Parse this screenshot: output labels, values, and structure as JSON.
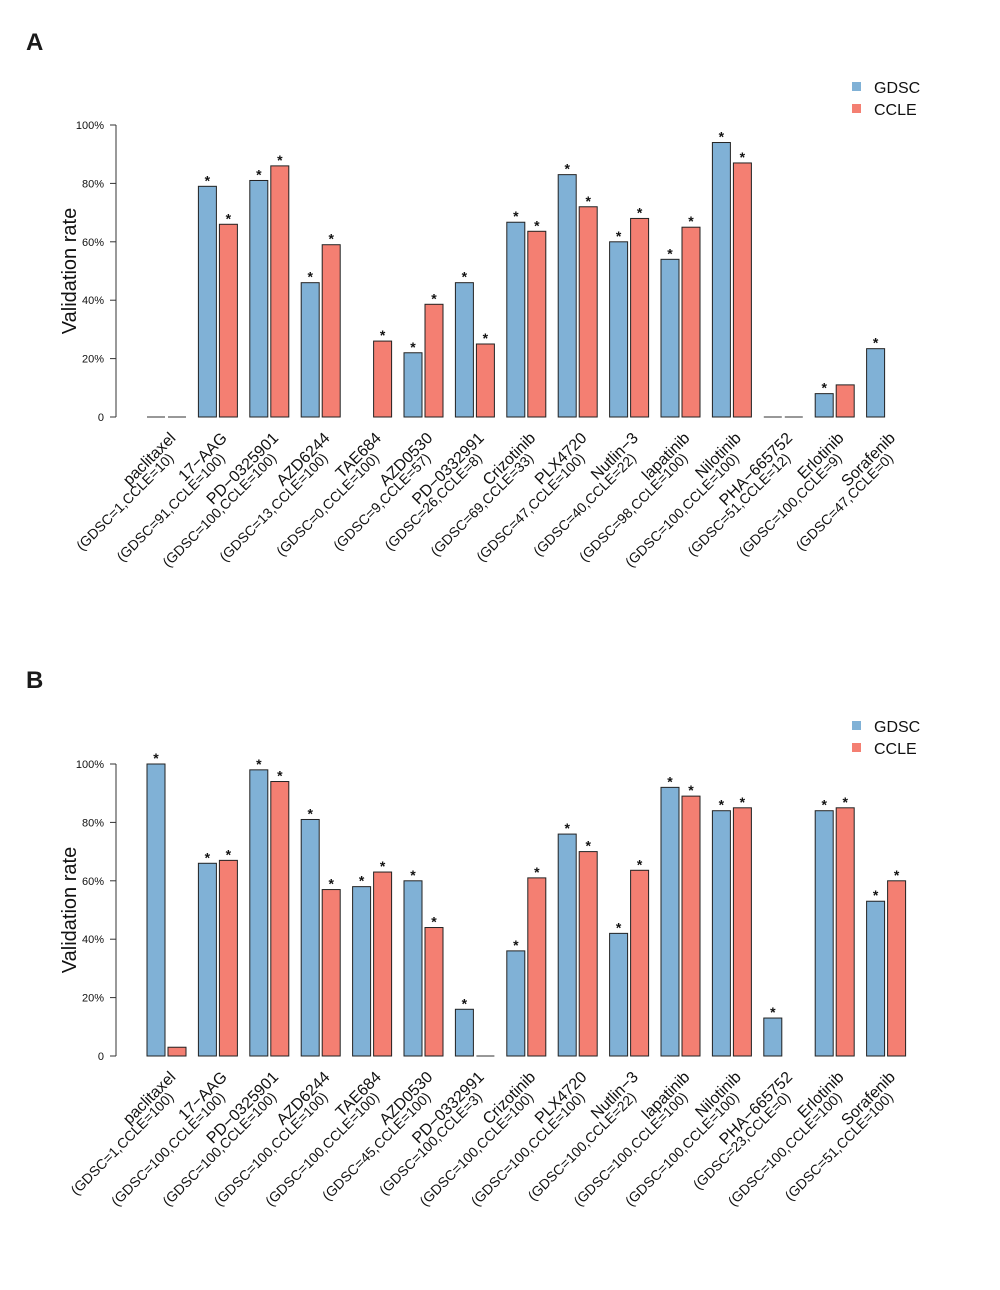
{
  "chart_data": [
    {
      "panel": "A",
      "type": "bar",
      "title": "",
      "xlabel": "",
      "ylabel": "Validation rate",
      "ylim": [
        0,
        100
      ],
      "yticks": [
        "0",
        "20%",
        "40%",
        "60%",
        "80%",
        "100%"
      ],
      "legend": {
        "position": "top-right",
        "entries": [
          "GDSC",
          "CCLE"
        ]
      },
      "colors": {
        "GDSC": "#80b1d6",
        "CCLE": "#f47f72"
      },
      "categories": [
        "paclitaxel",
        "17−AAG",
        "PD−0325901",
        "AZD6244",
        "TAE684",
        "AZD0530",
        "PD−0332991",
        "Crizotinib",
        "PLX4720",
        "Nutlin−3",
        "lapatinib",
        "Nilotinib",
        "PHA−665752",
        "Erlotinib",
        "Sorafenib"
      ],
      "sublabels": [
        "(GDSC=1,CCLE=10)",
        "(GDSC=91,CCLE=100)",
        "(GDSC=100,CCLE=100)",
        "(GDSC=13,CCLE=100)",
        "(GDSC=0,CCLE=100)",
        "(GDSC=9,CCLE=57)",
        "(GDSC=26,CCLE=8)",
        "(GDSC=69,CCLE=33)",
        "(GDSC=47,CCLE=100)",
        "(GDSC=40,CCLE=22)",
        "(GDSC=98,CCLE=100)",
        "(GDSC=100,CCLE=100)",
        "(GDSC=51,CCLE=12)",
        "(GDSC=100,CCLE=9)",
        "(GDSC=47,CCLE=0)"
      ],
      "series": [
        {
          "name": "GDSC",
          "values": [
            0,
            79,
            81,
            46,
            null,
            22,
            46,
            66.7,
            83,
            60,
            54,
            94,
            0,
            8,
            23.4
          ],
          "significant": [
            false,
            true,
            true,
            true,
            false,
            true,
            true,
            true,
            true,
            true,
            true,
            true,
            false,
            true,
            true
          ]
        },
        {
          "name": "CCLE",
          "values": [
            0,
            66,
            86,
            59,
            26,
            38.6,
            25,
            63.6,
            72,
            68,
            65,
            87,
            0,
            11,
            null
          ],
          "significant": [
            false,
            true,
            true,
            true,
            true,
            true,
            true,
            true,
            true,
            true,
            true,
            true,
            false,
            false,
            false
          ]
        }
      ]
    },
    {
      "panel": "B",
      "type": "bar",
      "title": "",
      "xlabel": "",
      "ylabel": "Validation rate",
      "ylim": [
        0,
        100
      ],
      "yticks": [
        "0",
        "20%",
        "40%",
        "60%",
        "80%",
        "100%"
      ],
      "legend": {
        "position": "top-right",
        "entries": [
          "GDSC",
          "CCLE"
        ]
      },
      "colors": {
        "GDSC": "#80b1d6",
        "CCLE": "#f47f72"
      },
      "categories": [
        "paclitaxel",
        "17−AAG",
        "PD−0325901",
        "AZD6244",
        "TAE684",
        "AZD0530",
        "PD−0332991",
        "Crizotinib",
        "PLX4720",
        "Nutlin−3",
        "lapatinib",
        "Nilotinib",
        "PHA−665752",
        "Erlotinib",
        "Sorafenib"
      ],
      "sublabels": [
        "(GDSC=1,CCLE=100)",
        "(GDSC=100,CCLE=100)",
        "(GDSC=100,CCLE=100)",
        "(GDSC=100,CCLE=100)",
        "(GDSC=100,CCLE=100)",
        "(GDSC=45,CCLE=100)",
        "(GDSC=100,CCLE=3)",
        "(GDSC=100,CCLE=100)",
        "(GDSC=100,CCLE=100)",
        "(GDSC=100,CCLE=22)",
        "(GDSC=100,CCLE=100)",
        "(GDSC=100,CCLE=100)",
        "(GDSC=23,CCLE=0)",
        "(GDSC=100,CCLE=100)",
        "(GDSC=51,CCLE=100)"
      ],
      "series": [
        {
          "name": "GDSC",
          "values": [
            100,
            66,
            98,
            81,
            58,
            60,
            16,
            36,
            76,
            42,
            92,
            84,
            13,
            84,
            53
          ],
          "significant": [
            true,
            true,
            true,
            true,
            true,
            true,
            true,
            true,
            true,
            true,
            true,
            true,
            true,
            true,
            true
          ]
        },
        {
          "name": "CCLE",
          "values": [
            3,
            67,
            94,
            57,
            63,
            44,
            0,
            61,
            70,
            63.6,
            89,
            85,
            null,
            85,
            60
          ],
          "significant": [
            false,
            true,
            true,
            true,
            true,
            true,
            false,
            true,
            true,
            true,
            true,
            true,
            false,
            true,
            true
          ]
        }
      ]
    }
  ],
  "significance_marker": "*"
}
